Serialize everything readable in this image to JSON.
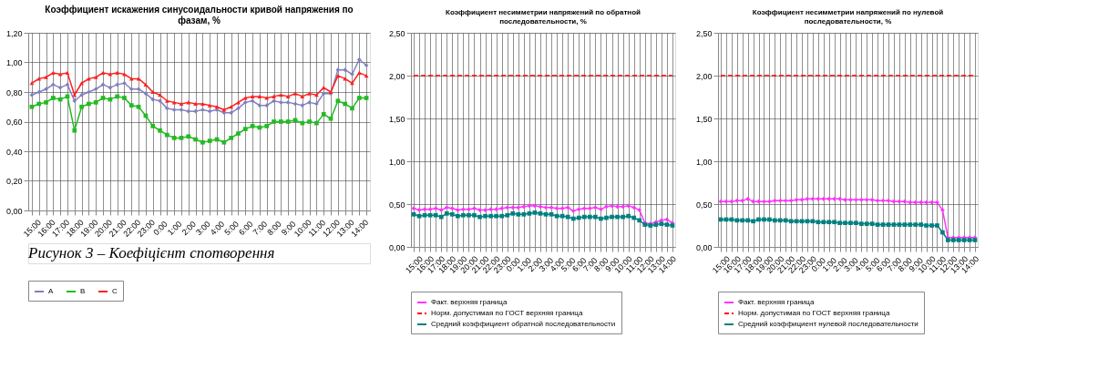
{
  "chart_data": [
    {
      "type": "line",
      "title": "Коэффициент искажения синусоидальности  кривой напряжения по фазам, %",
      "categories": [
        "15:00",
        null,
        "16:00",
        null,
        "17:00",
        null,
        "18:00",
        null,
        "19:00",
        null,
        "20:00",
        null,
        "21:00",
        null,
        "22:00",
        null,
        "23:00",
        null,
        "0:00",
        null,
        "1:00",
        null,
        "2:00",
        null,
        "3:00",
        null,
        "4:00",
        null,
        "5:00",
        null,
        "6:00",
        null,
        "7:00",
        null,
        "8:00",
        null,
        "9:00",
        null,
        "10:00",
        null,
        "11:00",
        null,
        "12:00",
        null,
        "13:00",
        null,
        "14:00",
        null
      ],
      "series": [
        {
          "name": "A",
          "color": "#8080c0",
          "marker": "diamond",
          "values": [
            0.78,
            0.8,
            0.82,
            0.85,
            0.83,
            0.85,
            0.74,
            0.78,
            0.8,
            0.82,
            0.85,
            0.83,
            0.85,
            0.86,
            0.82,
            0.82,
            0.79,
            0.75,
            0.74,
            0.69,
            0.68,
            0.68,
            0.67,
            0.67,
            0.68,
            0.67,
            0.68,
            0.66,
            0.66,
            0.69,
            0.73,
            0.74,
            0.71,
            0.71,
            0.74,
            0.73,
            0.73,
            0.72,
            0.71,
            0.73,
            0.72,
            0.79,
            0.79,
            0.95,
            0.95,
            0.92,
            1.02,
            0.98
          ]
        },
        {
          "name": "B",
          "color": "#22bb22",
          "marker": "square",
          "values": [
            0.7,
            0.72,
            0.73,
            0.76,
            0.75,
            0.77,
            0.54,
            0.7,
            0.72,
            0.73,
            0.76,
            0.75,
            0.77,
            0.76,
            0.71,
            0.7,
            0.64,
            0.57,
            0.54,
            0.51,
            0.49,
            0.49,
            0.5,
            0.48,
            0.46,
            0.47,
            0.48,
            0.46,
            0.49,
            0.52,
            0.55,
            0.57,
            0.56,
            0.57,
            0.6,
            0.6,
            0.6,
            0.61,
            0.59,
            0.6,
            0.59,
            0.65,
            0.62,
            0.74,
            0.72,
            0.69,
            0.76,
            0.76
          ]
        },
        {
          "name": "C",
          "color": "#ff2020",
          "marker": "triangle",
          "values": [
            0.86,
            0.89,
            0.9,
            0.93,
            0.92,
            0.93,
            0.78,
            0.86,
            0.89,
            0.9,
            0.93,
            0.92,
            0.93,
            0.92,
            0.89,
            0.89,
            0.85,
            0.8,
            0.78,
            0.74,
            0.73,
            0.72,
            0.73,
            0.72,
            0.72,
            0.71,
            0.7,
            0.68,
            0.7,
            0.73,
            0.76,
            0.77,
            0.77,
            0.76,
            0.77,
            0.78,
            0.77,
            0.79,
            0.77,
            0.79,
            0.78,
            0.83,
            0.8,
            0.91,
            0.89,
            0.86,
            0.93,
            0.91
          ]
        }
      ],
      "ylim": [
        0,
        1.2
      ],
      "yticks": [
        {
          "value": 0,
          "label": "0,00"
        },
        {
          "value": 0.2,
          "label": "0,20"
        },
        {
          "value": 0.4,
          "label": "0,40"
        },
        {
          "value": 0.6,
          "label": "0,60"
        },
        {
          "value": 0.8,
          "label": "0,80"
        },
        {
          "value": 1.0,
          "label": "1,00"
        },
        {
          "value": 1.2,
          "label": "1,20"
        }
      ],
      "grid": true,
      "legend": "bottom",
      "line_style": "solid",
      "annotations": [
        "Рисунок 3 – Коефіцієнт спотворення"
      ]
    },
    {
      "type": "line",
      "title": "Коэффициент несимметрии напряжений по обратной последовательности, %",
      "categories": [
        "15:00",
        null,
        "16:00",
        null,
        "17:00",
        null,
        "18:00",
        null,
        "19:00",
        null,
        "20:00",
        null,
        "21:00",
        null,
        "22:00",
        null,
        "23:00",
        null,
        "0:00",
        null,
        "1:00",
        null,
        "2:00",
        null,
        "3:00",
        null,
        "4:00",
        null,
        "5:00",
        null,
        "6:00",
        null,
        "7:00",
        null,
        "8:00",
        null,
        "9:00",
        null,
        "10:00",
        null,
        "11:00",
        null,
        "12:00",
        null,
        "13:00",
        null,
        "14:00",
        null
      ],
      "series": [
        {
          "name": "Факт. верхняя граница",
          "color": "#ff33ff",
          "marker": "diamond",
          "values": [
            0.45,
            0.43,
            0.44,
            0.44,
            0.45,
            0.43,
            0.46,
            0.45,
            0.43,
            0.44,
            0.44,
            0.45,
            0.43,
            0.43,
            0.44,
            0.44,
            0.45,
            0.46,
            0.46,
            0.46,
            0.47,
            0.48,
            0.48,
            0.47,
            0.46,
            0.46,
            0.45,
            0.45,
            0.46,
            0.42,
            0.44,
            0.45,
            0.45,
            0.46,
            0.44,
            0.47,
            0.48,
            0.47,
            0.47,
            0.48,
            0.46,
            0.43,
            0.28,
            0.27,
            0.29,
            0.31,
            0.32,
            0.28
          ]
        },
        {
          "name": "Норм. допустимая по ГОСТ верхняя граница",
          "color": "#ff0000",
          "marker": "none",
          "line_style": "dashed",
          "values": [
            2.0,
            2.0,
            2.0,
            2.0,
            2.0,
            2.0,
            2.0,
            2.0,
            2.0,
            2.0,
            2.0,
            2.0,
            2.0,
            2.0,
            2.0,
            2.0,
            2.0,
            2.0,
            2.0,
            2.0,
            2.0,
            2.0,
            2.0,
            2.0,
            2.0,
            2.0,
            2.0,
            2.0,
            2.0,
            2.0,
            2.0,
            2.0,
            2.0,
            2.0,
            2.0,
            2.0,
            2.0,
            2.0,
            2.0,
            2.0,
            2.0,
            2.0,
            2.0,
            2.0,
            2.0,
            2.0,
            2.0,
            2.0
          ]
        },
        {
          "name": "Средний коэффициент обратной последовательности",
          "color": "#008080",
          "marker": "square",
          "values": [
            0.38,
            0.36,
            0.37,
            0.37,
            0.37,
            0.35,
            0.39,
            0.38,
            0.36,
            0.37,
            0.37,
            0.37,
            0.35,
            0.36,
            0.36,
            0.36,
            0.36,
            0.37,
            0.39,
            0.38,
            0.38,
            0.39,
            0.4,
            0.39,
            0.38,
            0.38,
            0.36,
            0.36,
            0.35,
            0.33,
            0.34,
            0.35,
            0.35,
            0.35,
            0.33,
            0.34,
            0.35,
            0.35,
            0.35,
            0.36,
            0.34,
            0.31,
            0.26,
            0.25,
            0.26,
            0.27,
            0.26,
            0.25
          ]
        }
      ],
      "ylim": [
        0,
        2.5
      ],
      "yticks": [
        {
          "value": 0,
          "label": "0,00"
        },
        {
          "value": 0.5,
          "label": "0,50"
        },
        {
          "value": 1.0,
          "label": "1,00"
        },
        {
          "value": 1.5,
          "label": "1,50"
        },
        {
          "value": 2.0,
          "label": "2,00"
        },
        {
          "value": 2.5,
          "label": "2,50"
        }
      ],
      "grid": true,
      "legend": "bottom",
      "line_style": "solid"
    },
    {
      "type": "line",
      "title": "Коэффициент несимметрии напряжений по нулевой последовательности, %",
      "categories": [
        "15:00",
        null,
        "16:00",
        null,
        "17:00",
        null,
        "18:00",
        null,
        "19:00",
        null,
        "20:00",
        null,
        "21:00",
        null,
        "22:00",
        null,
        "23:00",
        null,
        "0:00",
        null,
        "1:00",
        null,
        "2:00",
        null,
        "3:00",
        null,
        "4:00",
        null,
        "5:00",
        null,
        "6:00",
        null,
        "7:00",
        null,
        "8:00",
        null,
        "9:00",
        null,
        "10:00",
        null,
        "11:00",
        null,
        "12:00",
        null,
        "13:00",
        null,
        "14:00",
        null
      ],
      "series": [
        {
          "name": "Факт. верхняя граница",
          "color": "#ff33ff",
          "marker": "diamond",
          "values": [
            0.53,
            0.53,
            0.53,
            0.54,
            0.54,
            0.56,
            0.53,
            0.53,
            0.53,
            0.53,
            0.54,
            0.54,
            0.54,
            0.54,
            0.55,
            0.55,
            0.56,
            0.56,
            0.56,
            0.56,
            0.56,
            0.56,
            0.56,
            0.55,
            0.55,
            0.55,
            0.55,
            0.55,
            0.55,
            0.54,
            0.54,
            0.54,
            0.53,
            0.53,
            0.53,
            0.52,
            0.52,
            0.52,
            0.52,
            0.52,
            0.52,
            0.43,
            0.11,
            0.11,
            0.11,
            0.11,
            0.11,
            0.11
          ]
        },
        {
          "name": "Норм. допустимая по ГОСТ верхняя граница",
          "color": "#ff0000",
          "marker": "none",
          "line_style": "dashed",
          "values": [
            2.0,
            2.0,
            2.0,
            2.0,
            2.0,
            2.0,
            2.0,
            2.0,
            2.0,
            2.0,
            2.0,
            2.0,
            2.0,
            2.0,
            2.0,
            2.0,
            2.0,
            2.0,
            2.0,
            2.0,
            2.0,
            2.0,
            2.0,
            2.0,
            2.0,
            2.0,
            2.0,
            2.0,
            2.0,
            2.0,
            2.0,
            2.0,
            2.0,
            2.0,
            2.0,
            2.0,
            2.0,
            2.0,
            2.0,
            2.0,
            2.0,
            2.0,
            2.0,
            2.0,
            2.0,
            2.0,
            2.0,
            2.0
          ]
        },
        {
          "name": "Средний коэффициент нулевой последовательности",
          "color": "#008080",
          "marker": "square",
          "values": [
            0.32,
            0.32,
            0.32,
            0.31,
            0.31,
            0.31,
            0.3,
            0.32,
            0.32,
            0.32,
            0.31,
            0.31,
            0.31,
            0.3,
            0.3,
            0.3,
            0.3,
            0.3,
            0.29,
            0.29,
            0.29,
            0.29,
            0.28,
            0.28,
            0.28,
            0.28,
            0.27,
            0.27,
            0.27,
            0.26,
            0.26,
            0.26,
            0.26,
            0.26,
            0.26,
            0.26,
            0.26,
            0.26,
            0.25,
            0.25,
            0.25,
            0.17,
            0.08,
            0.08,
            0.08,
            0.08,
            0.08,
            0.08
          ]
        }
      ],
      "ylim": [
        0,
        2.5
      ],
      "yticks": [
        {
          "value": 0,
          "label": "0,00"
        },
        {
          "value": 0.5,
          "label": "0,50"
        },
        {
          "value": 1.0,
          "label": "1,00"
        },
        {
          "value": 1.5,
          "label": "1,50"
        },
        {
          "value": 2.0,
          "label": "2,00"
        },
        {
          "value": 2.5,
          "label": "2,50"
        }
      ],
      "grid": true,
      "legend": "bottom",
      "line_style": "solid"
    }
  ]
}
